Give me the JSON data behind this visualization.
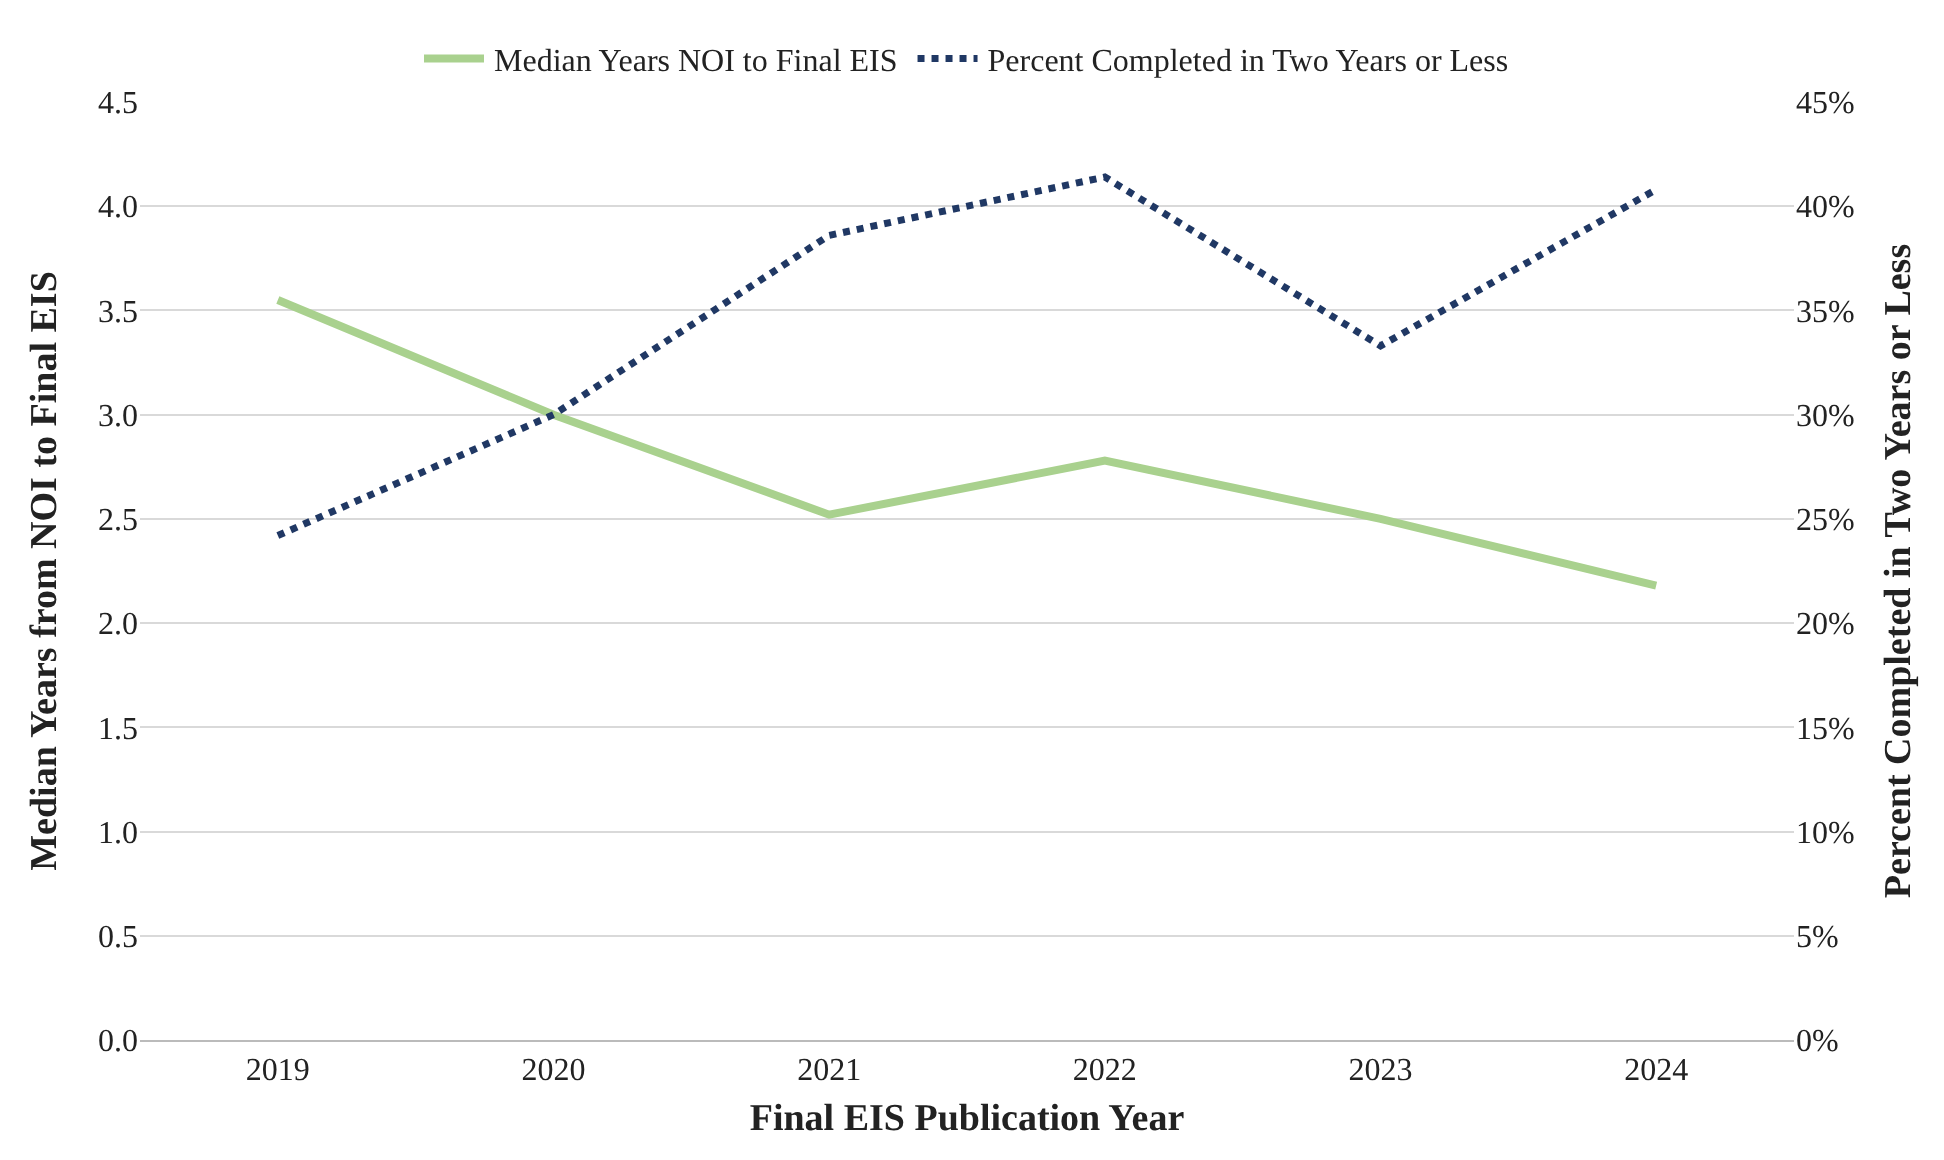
{
  "chart_data": {
    "type": "line",
    "xlabel": "Final EIS Publication Year",
    "ylabel": "Median Years from NOI to Final EIS",
    "y2label": "Percent Completed in Two Years or Less",
    "categories": [
      "2019",
      "2020",
      "2021",
      "2022",
      "2023",
      "2024"
    ],
    "series": [
      {
        "name": "Median Years NOI to Final EIS",
        "color": "#a9d18e",
        "values": [
          3.55,
          3.0,
          2.52,
          2.78,
          2.5,
          2.18
        ],
        "line_style": "solid"
      },
      {
        "name": "Percent Completed in Two Years or Less",
        "color": "#203864",
        "values": [
          24.2,
          30.0,
          38.6,
          41.4,
          33.3,
          40.8
        ],
        "axis": "y2",
        "line_style": "dotted"
      }
    ],
    "ylim": [
      0,
      4.5
    ],
    "yticks": [
      {
        "value": 0,
        "label": "0.0"
      },
      0.5,
      {
        "value": 1,
        "label": "1.0"
      },
      1.5,
      {
        "value": 2,
        "label": "2.0"
      },
      2.5,
      {
        "value": 3,
        "label": "3.0"
      },
      3.5,
      {
        "value": 4,
        "label": "4.0"
      },
      4.5
    ],
    "y2lim": [
      0,
      45
    ],
    "y2ticks": [
      {
        "value": 0,
        "label": "0%"
      },
      {
        "value": 5,
        "label": "5%"
      },
      {
        "value": 10,
        "label": "10%"
      },
      {
        "value": 15,
        "label": "15%"
      },
      {
        "value": 20,
        "label": "20%"
      },
      {
        "value": 25,
        "label": "25%"
      },
      {
        "value": 30,
        "label": "30%"
      },
      {
        "value": 35,
        "label": "35%"
      },
      {
        "value": 40,
        "label": "40%"
      },
      {
        "value": 45,
        "label": "45%"
      }
    ],
    "grid": "y",
    "legend": "top",
    "marker": "none"
  }
}
